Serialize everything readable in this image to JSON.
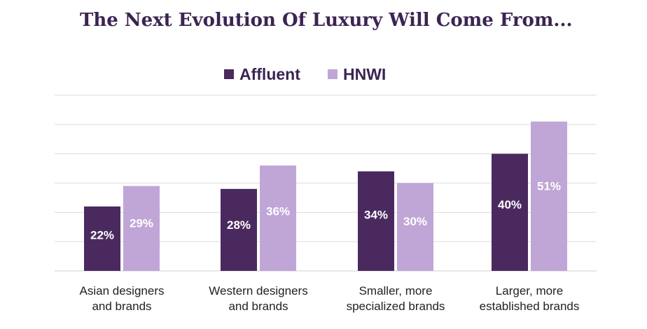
{
  "chart_data": {
    "type": "bar",
    "title": "The Next Evolution Of Luxury Will Come From...",
    "categories": [
      [
        "Asian designers",
        "and brands"
      ],
      [
        "Western designers",
        "and brands"
      ],
      [
        "Smaller, more",
        "specialized brands"
      ],
      [
        "Larger, more",
        "established brands"
      ]
    ],
    "series": [
      {
        "name": "Affluent",
        "values": [
          22,
          28,
          34,
          40
        ],
        "labels": [
          "22%",
          "28%",
          "34%",
          "40%"
        ],
        "color": "#4a2a5e"
      },
      {
        "name": "HNWI",
        "values": [
          29,
          36,
          30,
          51
        ],
        "labels": [
          "29%",
          "36%",
          "30%",
          "51%"
        ],
        "color": "#c0a6d6"
      }
    ],
    "ylim": [
      0,
      60
    ],
    "grid": true,
    "legend_position": "top-center"
  }
}
